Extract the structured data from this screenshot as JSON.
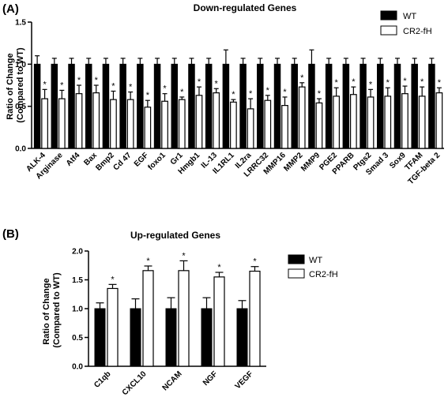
{
  "chart_data": [
    {
      "panel": "(A)",
      "type": "bar",
      "title": "Down-regulated Genes",
      "ylabel": "Ratio of Change\n(Compared to WT)",
      "ylim": [
        0,
        1.5
      ],
      "yticks": [
        "0.0",
        "0.5",
        "1.0",
        "1.5"
      ],
      "ytick_values": [
        0,
        0.5,
        1.0,
        1.5
      ],
      "legend_position": "top-right",
      "categories": [
        "ALK-4",
        "Arginase",
        "Atf4",
        "Bax",
        "Bmp2",
        "Cd 47",
        "EGF",
        "foxo1",
        "Gr1",
        "Hmgb1",
        "IL-13",
        "IL1RL1",
        "IL2ra",
        "LRRC32",
        "MMP16",
        "MMP2",
        "MMP9",
        "PGE2",
        "PPARB",
        "Ptgs2",
        "Smad 3",
        "Sox9",
        "TFAM",
        "TGF-beta 2"
      ],
      "series": [
        {
          "name": "WT",
          "color": "#000000",
          "values": [
            1,
            1,
            1,
            1,
            1,
            1,
            1,
            1,
            1,
            1,
            1,
            1,
            1,
            1,
            1,
            1,
            1,
            1,
            1,
            1,
            1,
            1,
            1,
            1
          ],
          "errors": [
            0.1,
            0.07,
            0.07,
            0.07,
            0.07,
            0.07,
            0.07,
            0.07,
            0.07,
            0.07,
            0.07,
            0.17,
            0.07,
            0.07,
            0.07,
            0.07,
            0.17,
            0.07,
            0.07,
            0.07,
            0.07,
            0.07,
            0.07,
            0.07
          ]
        },
        {
          "name": "CR2-fH",
          "color": "#ffffff",
          "values": [
            0.59,
            0.59,
            0.65,
            0.66,
            0.58,
            0.58,
            0.49,
            0.56,
            0.58,
            0.63,
            0.66,
            0.55,
            0.47,
            0.57,
            0.51,
            0.73,
            0.54,
            0.62,
            0.64,
            0.61,
            0.62,
            0.65,
            0.62,
            0.66
          ],
          "errors": [
            0.11,
            0.1,
            0.1,
            0.09,
            0.1,
            0.09,
            0.08,
            0.09,
            0.03,
            0.1,
            0.05,
            0.03,
            0.12,
            0.06,
            0.1,
            0.05,
            0.05,
            0.1,
            0.09,
            0.09,
            0.1,
            0.09,
            0.11,
            0.06
          ]
        }
      ],
      "significance": [
        "*",
        "*",
        "*",
        "*",
        "*",
        "*",
        "*",
        "*",
        "*",
        "*",
        "*",
        "*",
        "*",
        "*",
        "*",
        "*",
        "*",
        "*",
        "*",
        "*",
        "*",
        "*",
        "*",
        "*"
      ]
    },
    {
      "panel": "(B)",
      "type": "bar",
      "title": "Up-regulated Genes",
      "ylabel": "Ratio of Change\n(Compared to WT)",
      "ylim": [
        0,
        2.0
      ],
      "yticks": [
        "0.0",
        "0.5",
        "1.0",
        "1.5",
        "2.0"
      ],
      "ytick_values": [
        0,
        0.5,
        1.0,
        1.5,
        2.0
      ],
      "legend_position": "right",
      "categories": [
        "C1qb",
        "CXCL10",
        "NCAM",
        "NGF",
        "VEGF"
      ],
      "series": [
        {
          "name": "WT",
          "color": "#000000",
          "values": [
            1,
            1,
            1,
            1,
            1
          ],
          "errors": [
            0.1,
            0.17,
            0.19,
            0.19,
            0.14
          ]
        },
        {
          "name": "CR2-fH",
          "color": "#ffffff",
          "values": [
            1.35,
            1.66,
            1.66,
            1.55,
            1.65
          ],
          "errors": [
            0.07,
            0.08,
            0.17,
            0.08,
            0.08
          ]
        }
      ],
      "significance": [
        "*",
        "*",
        "*",
        "*",
        "*"
      ]
    }
  ]
}
